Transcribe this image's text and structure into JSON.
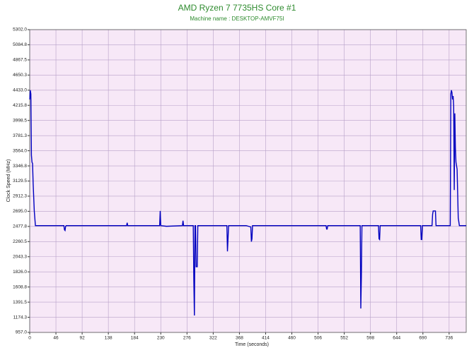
{
  "chart_data": {
    "type": "line",
    "title": "AMD Ryzen 7 7735HS Core #1",
    "subtitle": "Machine name : DESKTOP-AMVF75I",
    "x_label": "Time (seconds)",
    "y_label": "Clock Speed (MHz)",
    "grid": true,
    "xlim": [
      0,
      766
    ],
    "xticks": [
      0,
      46,
      92,
      138,
      184,
      230,
      276,
      322,
      368,
      414,
      460,
      506,
      552,
      598,
      644,
      690,
      736
    ],
    "ylim": [
      957,
      5302
    ],
    "yticks": [
      {
        "value": 957,
        "label": "957.0"
      },
      {
        "value": 1174.3,
        "label": "1174.3"
      },
      {
        "value": 1391.5,
        "label": "1391.5"
      },
      {
        "value": 1608.8,
        "label": "1608.8"
      },
      {
        "value": 1826,
        "label": "1826.0"
      },
      {
        "value": 2043.3,
        "label": "2043.3"
      },
      {
        "value": 2260.5,
        "label": "2260.5"
      },
      {
        "value": 2477.8,
        "label": "2477.8"
      },
      {
        "value": 2695,
        "label": "2695.0"
      },
      {
        "value": 2912.3,
        "label": "2912.3"
      },
      {
        "value": 3129.5,
        "label": "3129.5"
      },
      {
        "value": 3346.8,
        "label": "3346.8"
      },
      {
        "value": 3564,
        "label": "3564.0"
      },
      {
        "value": 3781.3,
        "label": "3781.3"
      },
      {
        "value": 3998.5,
        "label": "3998.5"
      },
      {
        "value": 4215.8,
        "label": "4215.8"
      },
      {
        "value": 4433,
        "label": "4433.0"
      },
      {
        "value": 4650.3,
        "label": "4650.3"
      },
      {
        "value": 4867.5,
        "label": "4867.5"
      },
      {
        "value": 5084.8,
        "label": "5084.8"
      },
      {
        "value": 5302,
        "label": "5302.0"
      }
    ],
    "x": [
      0,
      1,
      2,
      3,
      4,
      5,
      6,
      8,
      10,
      12,
      60,
      61,
      62,
      63,
      64,
      120,
      170,
      171,
      172,
      220,
      228,
      229,
      230,
      240,
      268,
      269,
      270,
      280,
      287,
      288,
      289,
      290,
      291,
      292,
      294,
      295,
      300,
      346,
      347,
      348,
      349,
      380,
      388,
      389,
      390,
      391,
      392,
      440,
      520,
      521,
      522,
      523,
      560,
      580,
      581,
      582,
      583,
      584,
      600,
      612,
      613,
      614,
      615,
      616,
      680,
      686,
      687,
      688,
      689,
      690,
      706,
      707,
      708,
      712,
      713,
      714,
      720,
      738,
      739,
      740,
      741,
      742,
      743,
      744,
      745,
      746,
      747,
      748,
      750,
      752,
      754,
      760,
      766
    ],
    "series": [
      {
        "color": "#0000c0",
        "values": [
          4300,
          4433,
          4380,
          3500,
          3400,
          3380,
          3100,
          2700,
          2490,
          2490,
          2490,
          2430,
          2420,
          2480,
          2490,
          2490,
          2490,
          2530,
          2490,
          2490,
          2490,
          2700,
          2490,
          2480,
          2490,
          2560,
          2490,
          2490,
          2490,
          1700,
          1200,
          2490,
          2490,
          1900,
          1900,
          2490,
          2490,
          2490,
          2120,
          2300,
          2490,
          2490,
          2470,
          2260,
          2300,
          2490,
          2490,
          2490,
          2490,
          2440,
          2440,
          2490,
          2490,
          2490,
          1300,
          1750,
          2490,
          2490,
          2490,
          2490,
          2300,
          2290,
          2490,
          2490,
          2490,
          2490,
          2290,
          2290,
          2490,
          2490,
          2490,
          2650,
          2700,
          2700,
          2490,
          2490,
          2490,
          2490,
          4380,
          4433,
          4400,
          4300,
          4350,
          4200,
          3000,
          4100,
          3600,
          3400,
          3300,
          2600,
          2490,
          2490,
          2490
        ]
      }
    ]
  }
}
